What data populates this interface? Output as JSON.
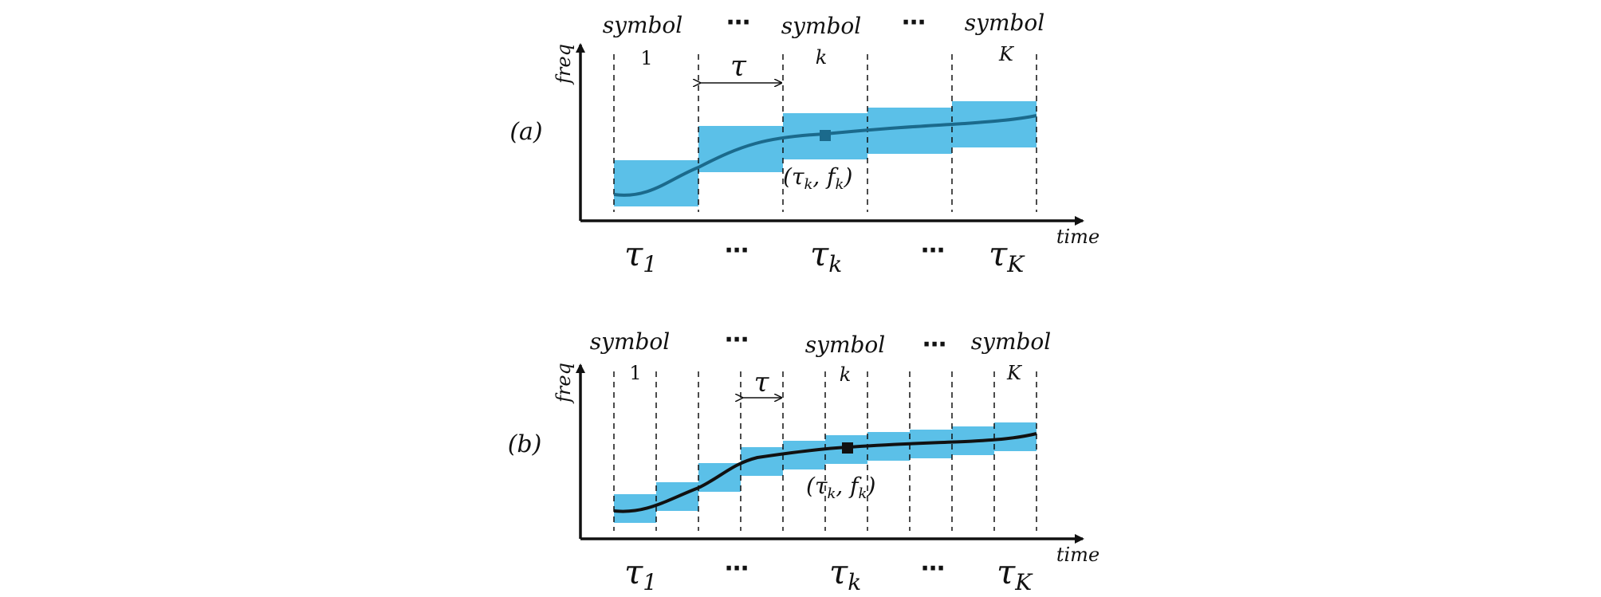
{
  "colors": {
    "box": "#5bc0e8",
    "curve_a": "#1b6a8c",
    "curve_b": "#111111",
    "marker_a": "#1b6a8c",
    "marker_b": "#111111"
  },
  "panel_a": {
    "label": "(a)",
    "y_axis": "freq",
    "x_axis": "time",
    "top": [
      {
        "line1": "symbol",
        "line2": "1"
      },
      {
        "line1": "⋯",
        "line2": ""
      },
      {
        "line1": "symbol",
        "line2": "k"
      },
      {
        "line1": "⋯",
        "line2": ""
      },
      {
        "line1": "symbol",
        "line2": "K"
      }
    ],
    "tau_label": "τ",
    "bottom": [
      "τ",
      "⋯",
      "τ",
      "⋯",
      "τ"
    ],
    "bottom_subs": [
      "1",
      "",
      "k",
      "",
      "K"
    ],
    "point": {
      "open": "(",
      "tau": "τ",
      "tau_sub": "k",
      "sep": ", ",
      "f": "f",
      "f_sub": "k",
      "close": ")"
    }
  },
  "panel_b": {
    "label": "(b)",
    "y_axis": "freq",
    "x_axis": "time",
    "top": [
      {
        "line1": "symbol",
        "line2": "1"
      },
      {
        "line1": "⋯",
        "line2": ""
      },
      {
        "line1": "symbol",
        "line2": "k"
      },
      {
        "line1": "⋯",
        "line2": ""
      },
      {
        "line1": "symbol",
        "line2": "K"
      }
    ],
    "tau_label": "τ",
    "bottom": [
      "τ",
      "⋯",
      "τ",
      "⋯",
      "τ"
    ],
    "bottom_subs": [
      "1",
      "",
      "k",
      "",
      "K"
    ],
    "point": {
      "open": "(",
      "tau": "τ",
      "tau_sub": "k",
      "sep": ", ",
      "f": "f",
      "f_sub": "k",
      "close": ")"
    }
  }
}
